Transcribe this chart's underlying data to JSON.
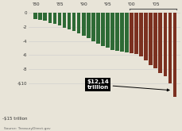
{
  "years": [
    1980,
    1981,
    1982,
    1983,
    1984,
    1985,
    1986,
    1987,
    1988,
    1989,
    1990,
    1991,
    1992,
    1993,
    1994,
    1995,
    1996,
    1997,
    1998,
    1999,
    2000,
    2001,
    2002,
    2003,
    2004,
    2005,
    2006,
    2007,
    2008,
    2009
  ],
  "values": [
    -0.91,
    -0.99,
    -1.14,
    -1.38,
    -1.56,
    -1.82,
    -2.12,
    -2.35,
    -2.6,
    -2.87,
    -3.21,
    -3.6,
    -4.06,
    -4.41,
    -4.69,
    -4.97,
    -5.22,
    -5.41,
    -5.53,
    -5.65,
    -5.67,
    -5.87,
    -6.2,
    -6.76,
    -7.38,
    -7.91,
    -8.51,
    -9.0,
    -10.02,
    -11.9
  ],
  "color_green": "#2d6a35",
  "color_brown": "#7b3020",
  "green_years": 20,
  "ylim": [
    -15,
    0.8
  ],
  "xtick_years": [
    1980,
    1985,
    1990,
    1995,
    2000,
    2005
  ],
  "xtick_labels": [
    "'80",
    "'85",
    "'90",
    "'95",
    "'00",
    "'05"
  ],
  "annotation_text": "$12,14\ntrillion",
  "source_text": "Source: TreasuryDirect.gov",
  "background_color": "#e8e4d8"
}
